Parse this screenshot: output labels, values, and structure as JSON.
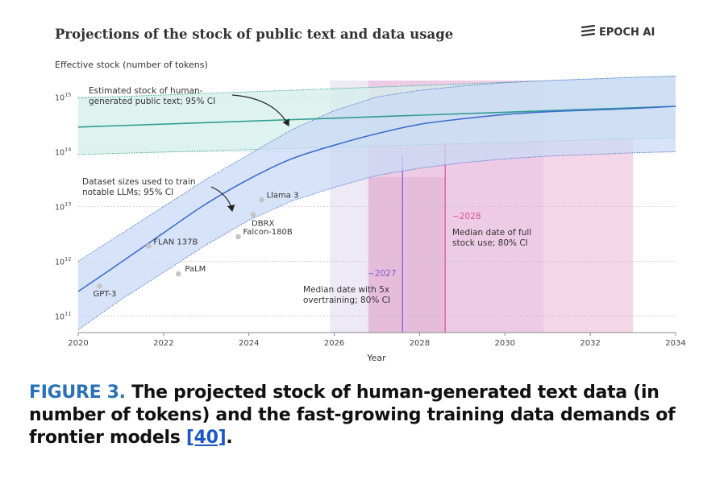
{
  "chart_data": {
    "type": "line",
    "title": "Projections of the stock of public text and data usage",
    "brand": "EPOCH AI",
    "ylabel": "Effective stock (number of tokens)",
    "xlabel": "Year",
    "x_range": [
      2020,
      2034
    ],
    "y_scale": "log",
    "y_range_log10": [
      10.7,
      15.3
    ],
    "x_ticks": [
      "2020",
      "2022",
      "2024",
      "2026",
      "2028",
      "2030",
      "2032",
      "2034"
    ],
    "y_ticks": [
      {
        "base": "10",
        "exp": "15",
        "log": 15
      },
      {
        "base": "10",
        "exp": "14",
        "log": 14
      },
      {
        "base": "10",
        "exp": "13",
        "log": 13
      },
      {
        "base": "10",
        "exp": "12",
        "log": 12
      },
      {
        "base": "10",
        "exp": "11",
        "log": 11
      }
    ],
    "series": [
      {
        "name": "Estimated stock of human-generated public text; 95% CI",
        "x": [
          2020,
          2034
        ],
        "log_median": [
          14.45,
          14.83
        ],
        "log_lower": [
          13.95,
          14.26
        ],
        "log_upper": [
          14.98,
          15.38
        ]
      },
      {
        "name": "Dataset sizes used to train notable LLMs; 95% CI",
        "x": [
          2020,
          2021,
          2022,
          2023,
          2024,
          2025,
          2026,
          2027,
          2028,
          2029,
          2030,
          2031,
          2032,
          2033,
          2034
        ],
        "log_median": [
          11.45,
          11.98,
          12.52,
          13.05,
          13.5,
          13.87,
          14.12,
          14.33,
          14.5,
          14.6,
          14.68,
          14.73,
          14.76,
          14.79,
          14.83
        ],
        "log_lower": [
          10.75,
          11.3,
          11.8,
          12.3,
          12.75,
          13.1,
          13.35,
          13.57,
          13.7,
          13.8,
          13.87,
          13.92,
          13.95,
          13.98,
          14.0
        ],
        "log_upper": [
          12.0,
          12.5,
          13.0,
          13.5,
          13.95,
          14.4,
          14.75,
          15.0,
          15.12,
          15.2,
          15.26,
          15.3,
          15.33,
          15.36,
          15.38
        ]
      }
    ],
    "models": [
      {
        "label": "GPT-3",
        "year": 2020.5,
        "log_tokens": 11.55
      },
      {
        "label": "FLAN 137B",
        "year": 2021.65,
        "log_tokens": 12.28
      },
      {
        "label": "PaLM",
        "year": 2022.35,
        "log_tokens": 11.77
      },
      {
        "label": "Falcon-180B",
        "year": 2023.75,
        "log_tokens": 12.45
      },
      {
        "label": "DBRX",
        "year": 2024.1,
        "log_tokens": 12.85
      },
      {
        "label": "Llama 3",
        "year": 2024.3,
        "log_tokens": 13.12
      }
    ],
    "regions": [
      {
        "name": "Median date with 5x overtraining; 80% CI",
        "marker": "~2027",
        "median": 2027.6,
        "ci": [
          2025.9,
          2030.9
        ],
        "inner": [
          2026.8,
          2028.6
        ]
      },
      {
        "name": "Median date of full stock use; 80% CI",
        "marker": "~2028",
        "median": 2028.6,
        "ci": [
          2026.8,
          2033.0
        ]
      }
    ],
    "annotations": {
      "stock_label_1": "Estimated stock of human-",
      "stock_label_2": "generated public text; 95% CI",
      "dataset_label_1": "Dataset sizes used to train",
      "dataset_label_2": "notable LLMs; 95% CI",
      "overtrain_marker": "~2027",
      "overtrain_label_1": "Median date with 5x",
      "overtrain_label_2": "overtraining; 80% CI",
      "fullstock_marker": "~2028",
      "fullstock_label_1": "Median date of full",
      "fullstock_label_2": "stock use; 80% CI"
    },
    "colors": {
      "stock_band": "#d3efea",
      "stock_line": "#2f9c91",
      "dataset_band": "#c9daf5",
      "dataset_line": "#3f6fd0",
      "overtrain_shade": "#e9e3f3",
      "fullstock_shade": "#ecb2d6",
      "marker_purple": "#7d5fcd",
      "marker_pink": "#d9509c",
      "model_dot": "#c4c4c4"
    }
  },
  "caption": {
    "label": "FIGURE 3.",
    "text": "The projected stock of human-generated text data (in number of tokens) and the fast-growing training data demands of frontier models",
    "ref": "[40]",
    "end": "."
  }
}
